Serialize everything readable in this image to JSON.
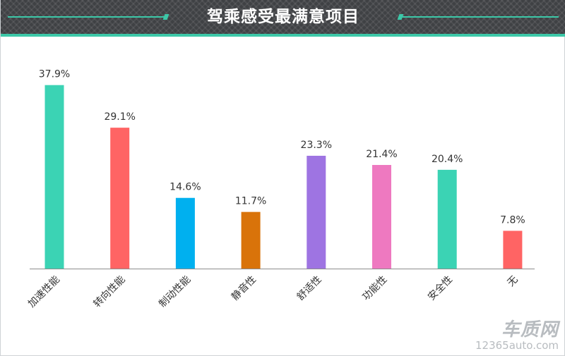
{
  "header": {
    "title": "驾乘感受最满意项目"
  },
  "chart_data": {
    "type": "bar",
    "categories": [
      "加速性能",
      "转向性能",
      "制动性能",
      "静音性",
      "舒适性",
      "功能性",
      "安全性",
      "无"
    ],
    "values": [
      37.9,
      29.1,
      14.6,
      11.7,
      23.3,
      21.4,
      20.4,
      7.8
    ],
    "data_labels": [
      "37.9%",
      "29.1%",
      "14.6%",
      "11.7%",
      "23.3%",
      "21.4%",
      "20.4%",
      "7.8%"
    ],
    "colors": [
      "#3bd3b4",
      "#ff6464",
      "#00b0ef",
      "#d9730a",
      "#9e74e2",
      "#ee79c0",
      "#3bd3b4",
      "#ff6464"
    ],
    "ylim": [
      0,
      38
    ],
    "grid": false,
    "legend": "none"
  },
  "watermark": {
    "brand": "车质网",
    "site": "12365auto.com"
  }
}
